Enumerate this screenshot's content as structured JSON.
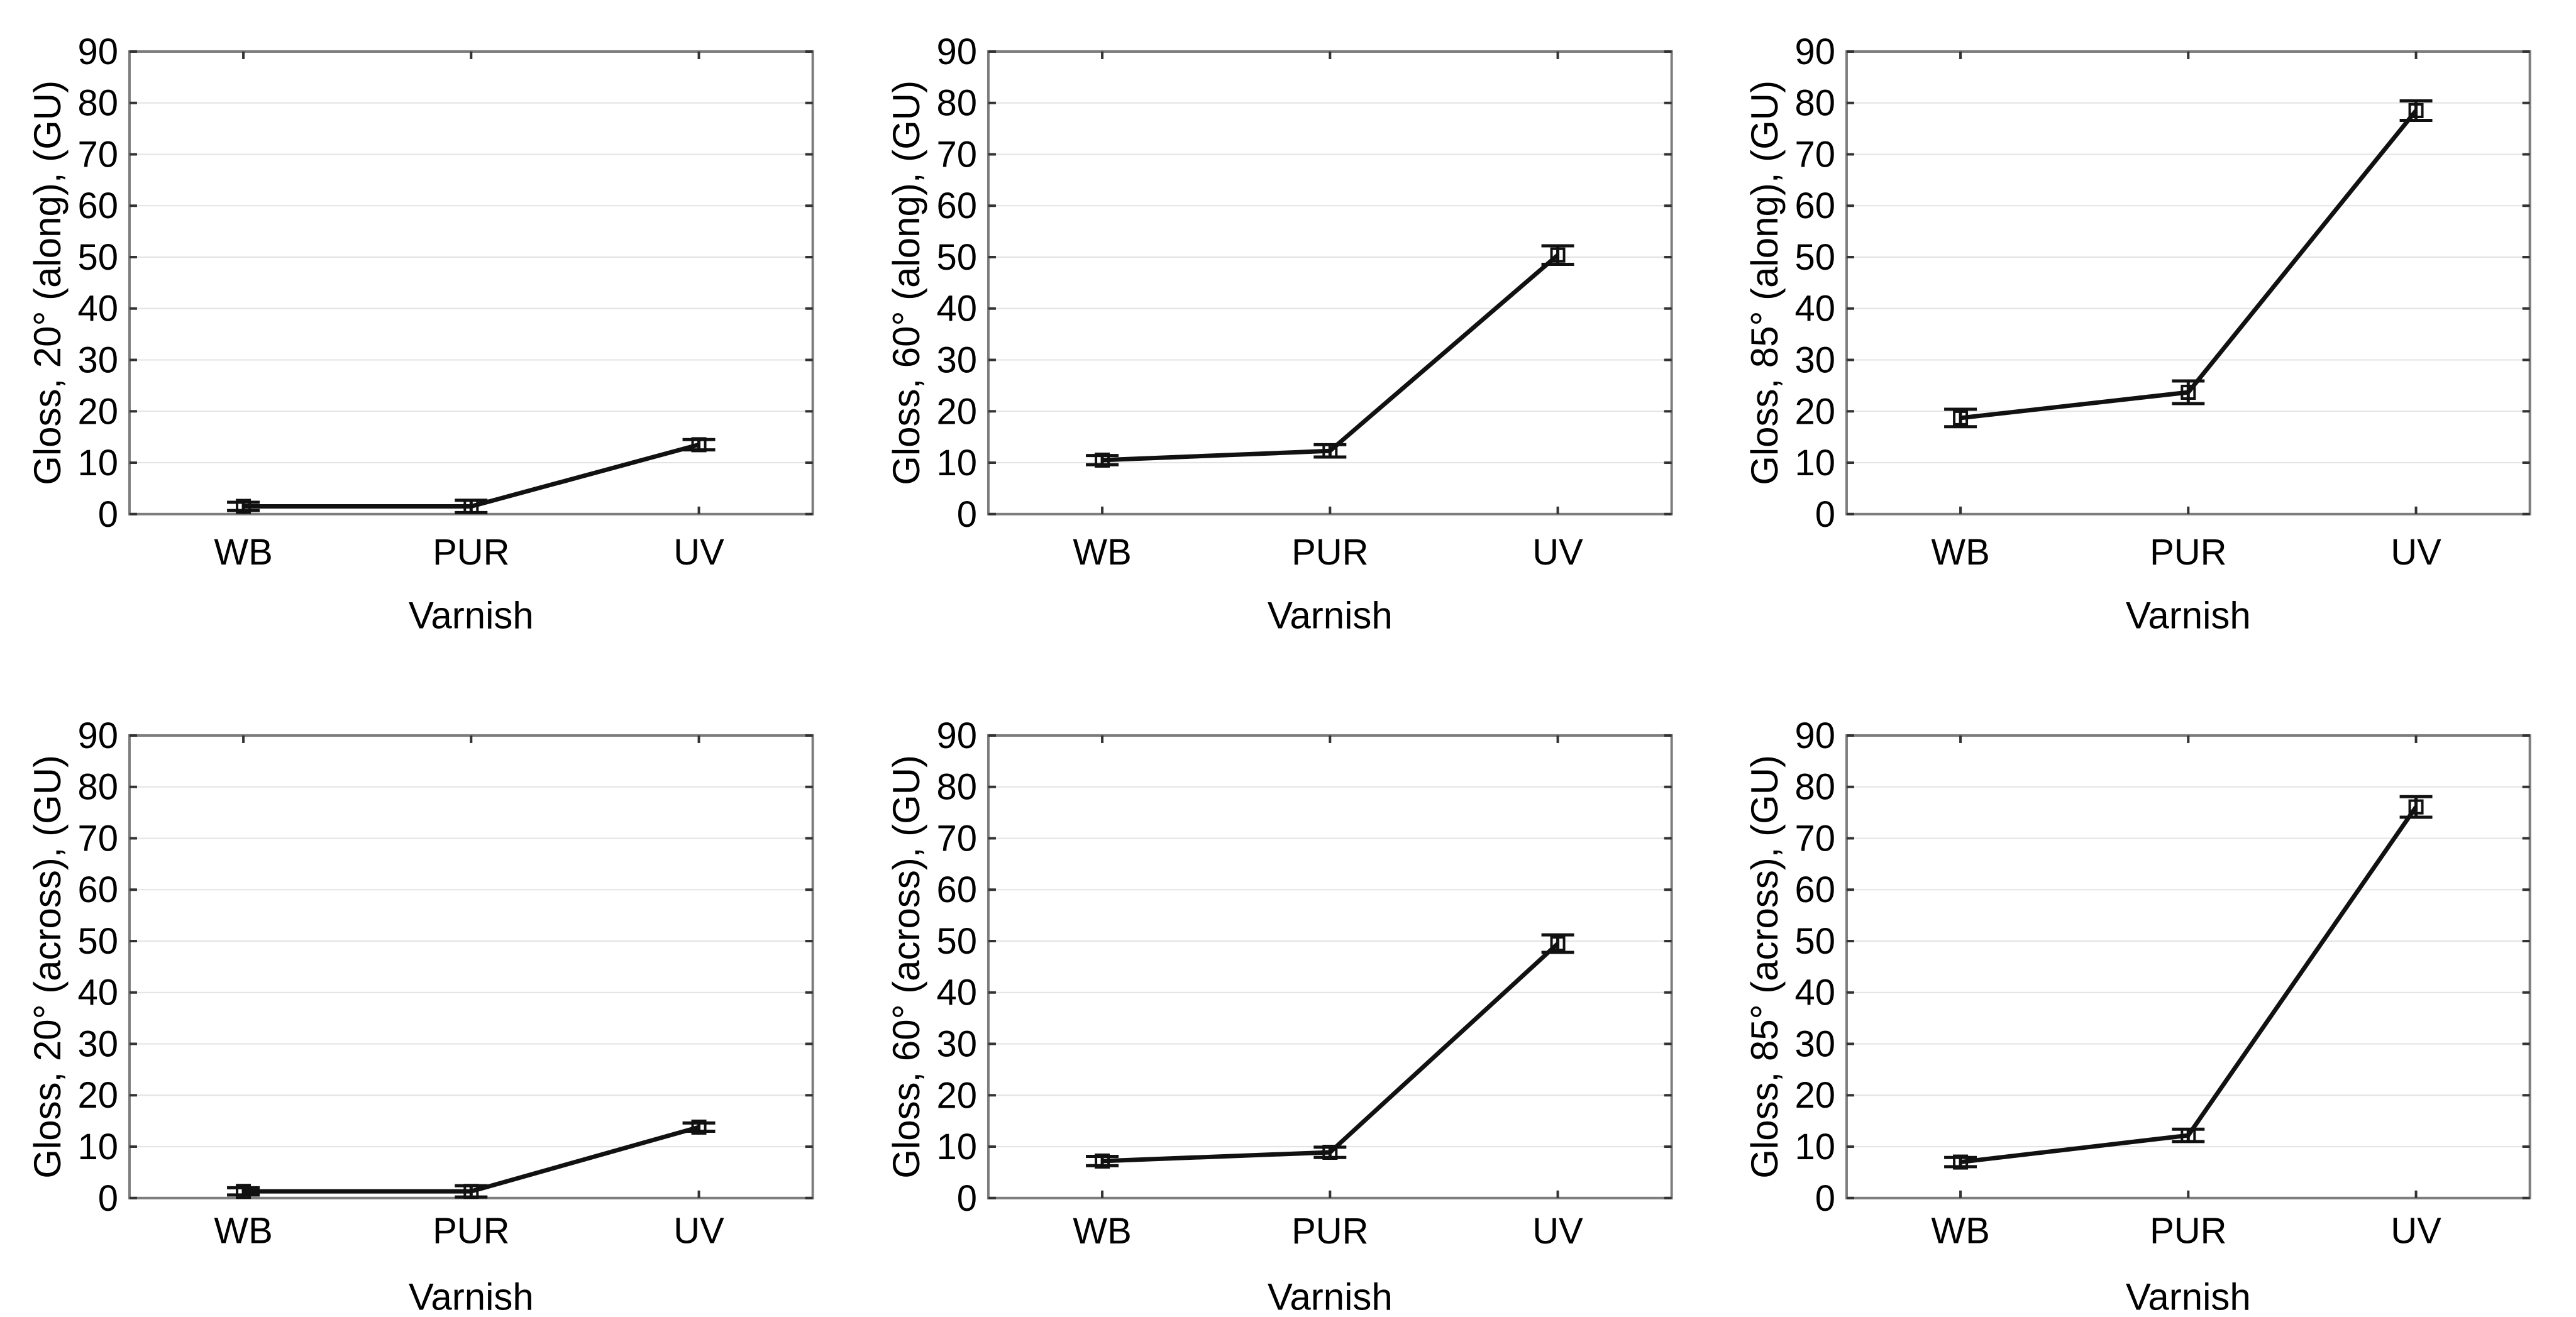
{
  "figure": {
    "xlabel": "Varnish",
    "categories": [
      "WB",
      "PUR",
      "UV"
    ],
    "unit": "GU"
  },
  "colors": {
    "line": "#111111",
    "marker_stroke": "#111111",
    "grid": "#e3e3e3",
    "frame": "#7d7d7d",
    "tick": "#333333",
    "text": "#000000",
    "background": "#ffffff"
  },
  "chart_data": [
    {
      "type": "line",
      "ylabel": "Gloss, 20° (along), (GU)",
      "xlabel": "Varnish",
      "categories": [
        "WB",
        "PUR",
        "UV"
      ],
      "values": [
        1.5,
        1.5,
        13.5
      ],
      "errors": [
        0.8,
        1.2,
        1.0
      ],
      "ylim": [
        0,
        90
      ],
      "ytick_step": 10,
      "grid": true,
      "marker": "open-square",
      "legend": "none"
    },
    {
      "type": "line",
      "ylabel": "Gloss, 60° (along), (GU)",
      "xlabel": "Varnish",
      "categories": [
        "WB",
        "PUR",
        "UV"
      ],
      "values": [
        10.5,
        12.3,
        50.4
      ],
      "errors": [
        0.9,
        1.2,
        1.8
      ],
      "ylim": [
        0,
        90
      ],
      "ytick_step": 10,
      "grid": true,
      "marker": "open-square",
      "legend": "none"
    },
    {
      "type": "line",
      "ylabel": "Gloss, 85° (along), (GU)",
      "xlabel": "Varnish",
      "categories": [
        "WB",
        "PUR",
        "UV"
      ],
      "values": [
        18.7,
        23.7,
        78.5
      ],
      "errors": [
        1.7,
        2.2,
        1.9
      ],
      "ylim": [
        0,
        90
      ],
      "ytick_step": 10,
      "grid": true,
      "marker": "open-square",
      "legend": "none"
    },
    {
      "type": "line",
      "ylabel": "Gloss, 20° (across), (GU)",
      "xlabel": "Varnish",
      "categories": [
        "WB",
        "PUR",
        "UV"
      ],
      "values": [
        1.3,
        1.3,
        13.8
      ],
      "errors": [
        0.7,
        1.1,
        0.8
      ],
      "ylim": [
        0,
        90
      ],
      "ytick_step": 10,
      "grid": true,
      "marker": "open-square",
      "legend": "none"
    },
    {
      "type": "line",
      "ylabel": "Gloss, 60° (across), (GU)",
      "xlabel": "Varnish",
      "categories": [
        "WB",
        "PUR",
        "UV"
      ],
      "values": [
        7.2,
        8.9,
        49.5
      ],
      "errors": [
        0.9,
        1.0,
        1.7
      ],
      "ylim": [
        0,
        90
      ],
      "ytick_step": 10,
      "grid": true,
      "marker": "open-square",
      "legend": "none"
    },
    {
      "type": "line",
      "ylabel": "Gloss, 85° (across), (GU)",
      "xlabel": "Varnish",
      "categories": [
        "WB",
        "PUR",
        "UV"
      ],
      "values": [
        7.0,
        12.2,
        76.1
      ],
      "errors": [
        0.9,
        1.2,
        2.0
      ],
      "ylim": [
        0,
        90
      ],
      "ytick_step": 10,
      "grid": true,
      "marker": "open-square",
      "legend": "none"
    }
  ]
}
